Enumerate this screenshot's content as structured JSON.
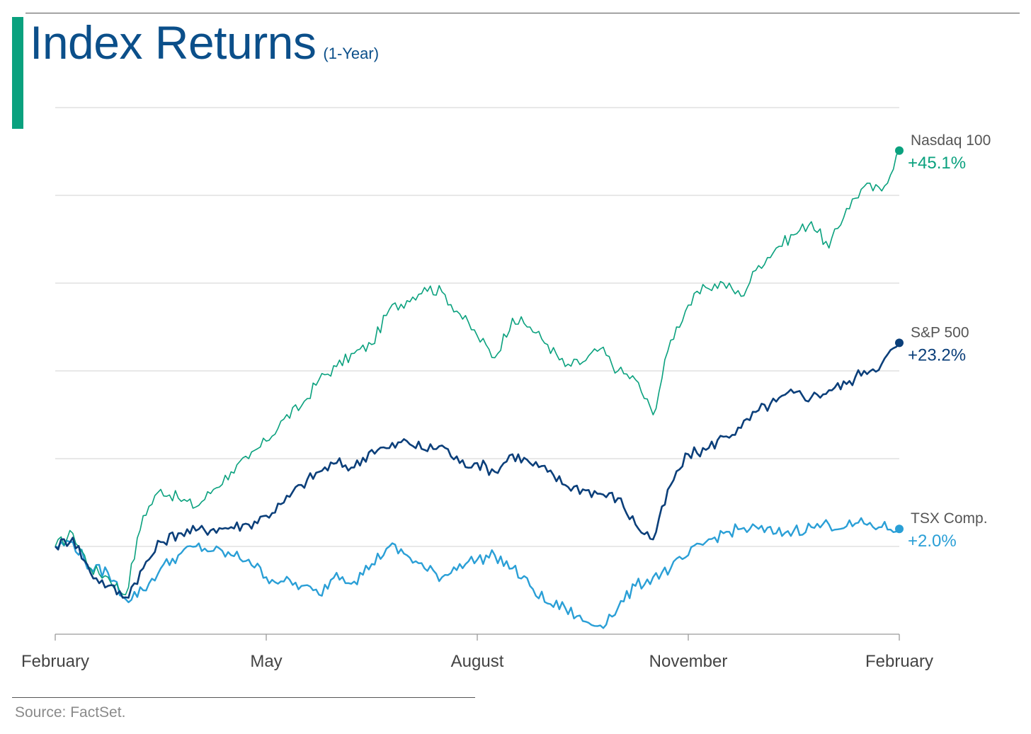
{
  "header": {
    "title": "Index Returns",
    "subtitle": "(1-Year)"
  },
  "footer": {
    "source": "Source: FactSet."
  },
  "colors": {
    "nasdaq": "#0aa17e",
    "sp500": "#0b3f7a",
    "tsx": "#2a9fd6",
    "grid": "#d0d0d0",
    "axis_text": "#444444",
    "accent": "#0aa17e",
    "title": "#0b4f8a"
  },
  "chart_data": {
    "type": "line",
    "title": "Index Returns",
    "subtitle": "(1-Year)",
    "xlabel": "",
    "ylabel": "",
    "x_ticks": [
      "February",
      "May",
      "August",
      "November",
      "February"
    ],
    "x_range": [
      0,
      12
    ],
    "ylim": [
      -10,
      50
    ],
    "y_gridlines": [
      -10,
      0,
      10,
      20,
      30,
      40,
      50
    ],
    "grid": true,
    "y_tick_labels": "none",
    "legend": "labels at line ends (right)",
    "x": [
      0,
      0.25,
      0.5,
      0.75,
      1,
      1.25,
      1.5,
      1.75,
      2,
      2.25,
      2.5,
      2.75,
      3,
      3.25,
      3.5,
      3.75,
      4,
      4.25,
      4.5,
      4.75,
      5,
      5.25,
      5.5,
      5.75,
      6,
      6.25,
      6.5,
      6.75,
      7,
      7.25,
      7.5,
      7.75,
      8,
      8.25,
      8.5,
      8.75,
      9,
      9.25,
      9.5,
      9.75,
      10,
      10.25,
      10.5,
      10.75,
      11,
      11.25,
      11.5,
      11.75,
      12
    ],
    "series": [
      {
        "name": "Nasdaq 100",
        "end_label": "+45.1%",
        "color": "#0aa17e",
        "values": [
          0,
          1.5,
          -2.5,
          -3.5,
          -5.5,
          3.5,
          6.5,
          5.5,
          4.5,
          6.5,
          8.5,
          10,
          12,
          14.5,
          16,
          19,
          20.5,
          22,
          23,
          27,
          28,
          29.5,
          29,
          26.5,
          24,
          21.5,
          26,
          25,
          23,
          20.5,
          21,
          22.5,
          20,
          19,
          15,
          23.5,
          27.5,
          29.5,
          30,
          28.5,
          32,
          34,
          35.5,
          37,
          34,
          38.5,
          41,
          40.5,
          45.1
        ]
      },
      {
        "name": "S&P 500",
        "end_label": "+23.2%",
        "color": "#0b3f7a",
        "values": [
          0,
          1,
          -3,
          -4.5,
          -5.8,
          -2.5,
          0.5,
          1.5,
          1.8,
          2,
          2.2,
          2.5,
          3.5,
          5,
          7,
          8.5,
          9.5,
          9,
          11,
          11.2,
          12,
          11,
          11.5,
          9.5,
          9.5,
          8.5,
          10.5,
          9.5,
          8.5,
          7,
          6.5,
          6,
          5.5,
          2.5,
          0.8,
          7,
          10.5,
          11,
          12.5,
          13.5,
          15.5,
          16.5,
          17.5,
          17,
          17.8,
          18.5,
          20,
          20.8,
          23.2
        ]
      },
      {
        "name": "TSX Comp.",
        "end_label": "+2.0%",
        "color": "#2a9fd6",
        "values": [
          0,
          0.5,
          -2.5,
          -3,
          -6,
          -5,
          -2.5,
          -1,
          0,
          -0.5,
          -1,
          -1.5,
          -3.5,
          -4,
          -4.5,
          -5.5,
          -3,
          -4,
          -2,
          0,
          -1,
          -2.5,
          -3.5,
          -2,
          -1.5,
          -1,
          -2.5,
          -4.5,
          -6.5,
          -7,
          -8.5,
          -9,
          -7,
          -4.5,
          -3.5,
          -2.5,
          -1,
          0.5,
          1.5,
          2,
          2,
          1.5,
          1.8,
          2.2,
          2.5,
          2.3,
          2.6,
          2.2,
          2.0
        ]
      }
    ]
  }
}
